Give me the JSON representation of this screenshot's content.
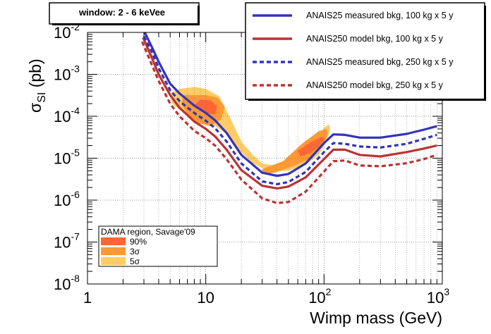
{
  "chart_data": {
    "type": "line",
    "title": "window: 2 - 6 keVee",
    "xlabel": "Wimp mass (GeV)",
    "ylabel": "σSI (pb)",
    "ylabel_parts": {
      "main": "σ",
      "sub": "SI",
      "unit": " (pb)"
    },
    "xscale": "log",
    "yscale": "log",
    "xlim": [
      1,
      1000
    ],
    "ylim": [
      1e-08,
      0.01
    ],
    "grid": true,
    "xticks": [
      {
        "value": 1,
        "base": "1",
        "exp": ""
      },
      {
        "value": 10,
        "base": "10",
        "exp": ""
      },
      {
        "value": 100,
        "base": "10",
        "exp": "2"
      },
      {
        "value": 1000,
        "base": "10",
        "exp": "3"
      }
    ],
    "yticks": [
      {
        "value": 1e-08,
        "base": "10",
        "exp": "-8"
      },
      {
        "value": 1e-07,
        "base": "10",
        "exp": "-7"
      },
      {
        "value": 1e-06,
        "base": "10",
        "exp": "-6"
      },
      {
        "value": 1e-05,
        "base": "10",
        "exp": "-5"
      },
      {
        "value": 0.0001,
        "base": "10",
        "exp": "-4"
      },
      {
        "value": 0.001,
        "base": "10",
        "exp": "-3"
      },
      {
        "value": 0.01,
        "base": "10",
        "exp": "-2"
      }
    ],
    "legend_placement": "top-right",
    "series": [
      {
        "name": "ANAIS25 measured bkg, 100 kg x 5 y",
        "color": "#3333bb",
        "style": "solid",
        "x": [
          3.05,
          3.5,
          4,
          5,
          6,
          8,
          10,
          12,
          15,
          20,
          30,
          40,
          50,
          70,
          100,
          120,
          150,
          200,
          300,
          500,
          700,
          900
        ],
        "y": [
          0.01,
          0.0045,
          0.002,
          0.0006,
          0.00035,
          0.00018,
          0.00012,
          8e-05,
          4e-05,
          1.2e-05,
          4.5e-06,
          3.8e-06,
          4.2e-06,
          7.5e-06,
          2.3e-05,
          3.7e-05,
          3.6e-05,
          3.1e-05,
          3.1e-05,
          3.8e-05,
          4.8e-05,
          5.8e-05
        ]
      },
      {
        "name": "ANAIS250 model bkg, 100 kg x 5 y",
        "color": "#bb3333",
        "style": "solid",
        "x": [
          2.95,
          3.5,
          4,
          5,
          6,
          8,
          10,
          12,
          15,
          20,
          30,
          40,
          50,
          70,
          100,
          120,
          150,
          200,
          300,
          500,
          700,
          900
        ],
        "y": [
          0.0075,
          0.0025,
          0.001,
          0.00032,
          0.00016,
          7.5e-05,
          5e-05,
          3.3e-05,
          1.6e-05,
          5.2e-06,
          2.2e-06,
          1.9e-06,
          2.1e-06,
          3.5e-06,
          9.5e-06,
          1.6e-05,
          1.6e-05,
          1.2e-05,
          1.1e-05,
          1.4e-05,
          1.7e-05,
          2e-05
        ]
      },
      {
        "name": "ANAIS25 measured bkg, 250 kg x 5 y",
        "color": "#3333bb",
        "style": "dashed",
        "x": [
          3.0,
          3.5,
          4,
          5,
          6,
          8,
          10,
          12,
          15,
          20,
          30,
          40,
          50,
          70,
          100,
          120,
          150,
          200,
          300,
          500,
          700,
          900
        ],
        "y": [
          0.008,
          0.0035,
          0.0014,
          0.00042,
          0.00023,
          0.00012,
          7.8e-05,
          5.2e-05,
          2.5e-05,
          7.5e-06,
          2.8e-06,
          2.4e-06,
          2.7e-06,
          4.7e-06,
          1.4e-05,
          2.3e-05,
          2.2e-05,
          1.9e-05,
          1.8e-05,
          2.2e-05,
          2.9e-05,
          3.6e-05
        ]
      },
      {
        "name": "ANAIS250 model bkg, 250 kg x 5 y",
        "color": "#bb3333",
        "style": "dashed",
        "x": [
          2.9,
          3.5,
          4,
          5,
          6,
          8,
          10,
          12,
          15,
          20,
          30,
          40,
          50,
          70,
          100,
          120,
          150,
          200,
          300,
          500,
          700,
          900
        ],
        "y": [
          0.006,
          0.0017,
          0.0007,
          0.0002,
          0.0001,
          4.5e-05,
          3e-05,
          2e-05,
          9.5e-06,
          3.1e-06,
          1.1e-06,
          8.5e-07,
          9e-07,
          1.6e-06,
          4.8e-06,
          8.5e-06,
          8.8e-06,
          6.7e-06,
          6.4e-06,
          7.6e-06,
          9.5e-06,
          1.2e-05
        ]
      }
    ],
    "regions": {
      "title": "DAMA region, Savage'09",
      "items": [
        {
          "name": "90%",
          "color": "#ff6633",
          "islands": [
            [
              [
                8,
                0.00018
              ],
              [
                9,
                0.00025
              ],
              [
                11,
                0.00024
              ],
              [
                12.5,
                0.00017
              ],
              [
                12,
                0.00011
              ],
              [
                10,
                0.00012
              ],
              [
                8.5,
                0.00015
              ]
            ],
            [
              [
                60,
                1.5e-05
              ],
              [
                75,
                2.3e-05
              ],
              [
                95,
                3.2e-05
              ],
              [
                102,
                3e-05
              ],
              [
                90,
                1.9e-05
              ],
              [
                75,
                1.3e-05
              ],
              [
                63,
                1.1e-05
              ]
            ]
          ]
        },
        {
          "name": "3σ",
          "color": "#ff9933",
          "islands": [
            [
              [
                6.5,
                0.00032
              ],
              [
                8,
                0.00032
              ],
              [
                10,
                0.00032
              ],
              [
                12.5,
                0.00028
              ],
              [
                14.5,
                0.00017
              ],
              [
                13.5,
                8.5e-05
              ],
              [
                11,
                5.8e-05
              ],
              [
                8.5,
                7e-05
              ],
              [
                7,
                0.00011
              ],
              [
                6.2,
                0.0002
              ]
            ],
            [
              [
                30,
                5.5e-06
              ],
              [
                45,
                8.5e-06
              ],
              [
                65,
                2.2e-05
              ],
              [
                90,
                4.4e-05
              ],
              [
                105,
                5e-05
              ],
              [
                108,
                3.8e-05
              ],
              [
                95,
                1.8e-05
              ],
              [
                75,
                9.5e-06
              ],
              [
                55,
                6.5e-06
              ],
              [
                38,
                4.5e-06
              ],
              [
                30,
                4.2e-06
              ]
            ]
          ]
        },
        {
          "name": "5σ",
          "color": "#ffcc66",
          "islands": [
            [
              [
                5,
                0.00035
              ],
              [
                6,
                0.00045
              ],
              [
                8,
                0.0005
              ],
              [
                10,
                0.00045
              ],
              [
                13,
                0.0003
              ],
              [
                16,
                9.5e-05
              ],
              [
                20,
                2.5e-05
              ],
              [
                25,
                1.2e-05
              ],
              [
                30,
                7.5e-06
              ],
              [
                40,
                6.5e-06
              ],
              [
                60,
                1.2e-05
              ],
              [
                80,
                2.5e-05
              ],
              [
                100,
                5.2e-05
              ],
              [
                110,
                6.5e-05
              ],
              [
                113,
                5e-05
              ],
              [
                105,
                2.5e-05
              ],
              [
                90,
                1.2e-05
              ],
              [
                70,
                7e-06
              ],
              [
                50,
                5e-06
              ],
              [
                35,
                4.8e-06
              ],
              [
                25,
                7.5e-06
              ],
              [
                19,
                1.6e-05
              ],
              [
                15,
                3.8e-05
              ],
              [
                12,
                5.8e-05
              ],
              [
                10,
                7e-05
              ],
              [
                8,
                8.5e-05
              ],
              [
                6.5,
                0.00012
              ],
              [
                5.2,
                0.0002
              ]
            ]
          ]
        }
      ]
    }
  }
}
